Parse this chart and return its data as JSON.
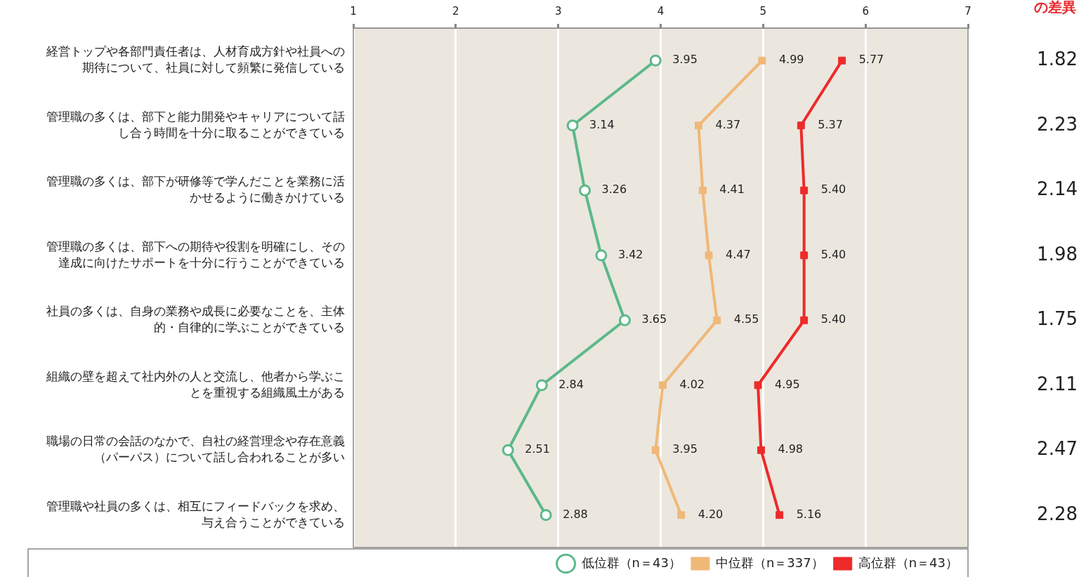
{
  "chart_data": {
    "type": "line",
    "orientation": "horizontal",
    "categories": [
      "経営トップや各部門責任者は、人材育成方針や社員への期待について、社員に対して頻繁に発信している",
      "管理職の多くは、部下と能力開発やキャリアについて話し合う時間を十分に取ることができている",
      "管理職の多くは、部下が研修等で学んだことを業務に活かせるように働きかけている",
      "管理職の多くは、部下への期待や役割を明確にし、その達成に向けたサポートを十分に行うことができている",
      "社員の多くは、自身の業務や成長に必要なことを、主体的・自律的に学ぶことができている",
      "組織の壁を超えて社内外の人と交流し、他者から学ぶことを重視する組織風土がある",
      "職場の日常の会話のなかで、自社の経営理念や存在意義（パーパス）について話し合われることが多い",
      "管理職や社員の多くは、相互にフィードバックを求め、与え合うことができている"
    ],
    "series": [
      {
        "name": "低位群（n＝43）",
        "color": "#5db88a",
        "marker": "circle",
        "values": [
          3.95,
          3.14,
          3.26,
          3.42,
          3.65,
          2.84,
          2.51,
          2.88
        ],
        "value_labels": [
          "3.95",
          "3.14",
          "3.26",
          "3.42",
          "3.65",
          "2.84",
          "2.51",
          "2.88"
        ]
      },
      {
        "name": "中位群（n＝337）",
        "color": "#f0b878",
        "marker": "square",
        "values": [
          4.99,
          4.37,
          4.41,
          4.47,
          4.55,
          4.02,
          3.95,
          4.2
        ],
        "value_labels": [
          "4.99",
          "4.37",
          "4.41",
          "4.47",
          "4.55",
          "4.02",
          "3.95",
          "4.20"
        ]
      },
      {
        "name": "高位群（n＝43）",
        "color": "#ee2a2a",
        "marker": "square",
        "values": [
          5.77,
          5.37,
          5.4,
          5.4,
          5.4,
          4.95,
          4.98,
          5.16
        ],
        "value_labels": [
          "5.77",
          "5.37",
          "5.40",
          "5.40",
          "5.40",
          "4.95",
          "4.98",
          "5.16"
        ]
      }
    ],
    "xlim": [
      1,
      7
    ],
    "xticks": [
      1,
      2,
      3,
      4,
      5,
      6,
      7
    ],
    "grid": "x",
    "legend": "bottom right",
    "annotations": [
      "の差異",
      "1.82",
      "2.23",
      "2.14",
      "1.98",
      "1.75",
      "2.11",
      "2.47",
      "2.28"
    ]
  }
}
